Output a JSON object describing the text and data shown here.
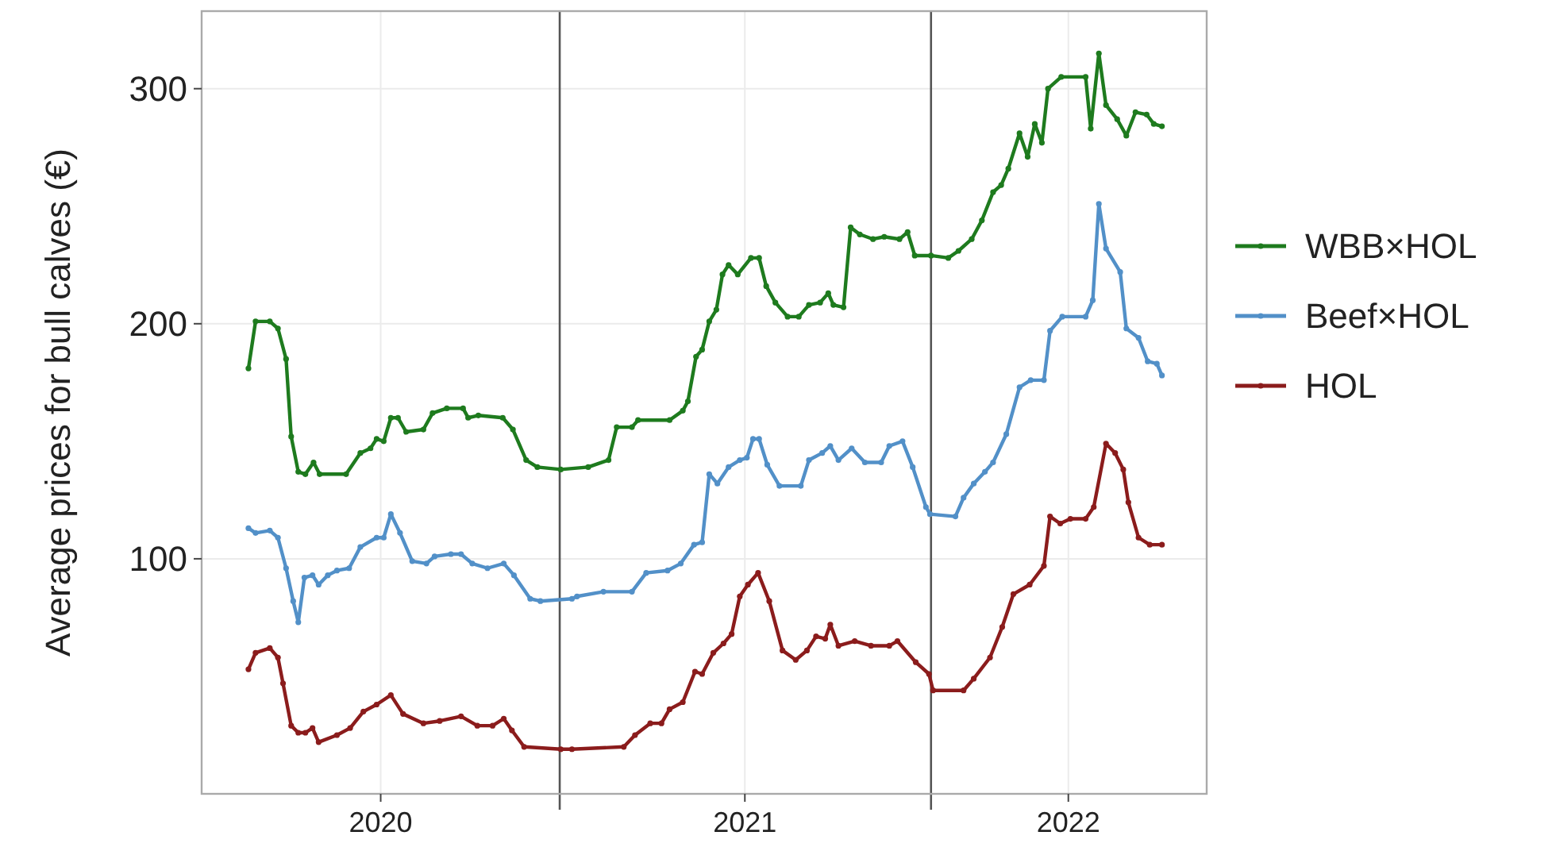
{
  "chart_data": {
    "type": "line",
    "ylabel": "Average prices for bull calves (€)",
    "xlim": [
      "2020-01-15",
      "2022-09-29"
    ],
    "xticks": [
      {
        "value": "2020-07-09",
        "label": "2020"
      },
      {
        "value": "2021-07-02",
        "label": "2021"
      },
      {
        "value": "2022-05-16",
        "label": "2022"
      }
    ],
    "ylim": [
      0,
      333
    ],
    "yticks": [
      100,
      200,
      300
    ],
    "grid": true,
    "legend": "right",
    "marker": "circle",
    "line_style": "solid",
    "ref_lines": [
      {
        "axis": "x",
        "value": "2021-01-01",
        "color": "#555555"
      },
      {
        "axis": "x",
        "value": "2022-01-01",
        "color": "#555555"
      }
    ],
    "series": [
      {
        "name": "WBB×HOL",
        "color": "#1e7b1e",
        "x": [
          "2020-03-01",
          "2020-03-08",
          "2020-03-22",
          "2020-03-30",
          "2020-04-07",
          "2020-04-12",
          "2020-04-19",
          "2020-04-26",
          "2020-05-04",
          "2020-05-10",
          "2020-06-05",
          "2020-06-19",
          "2020-06-29",
          "2020-07-05",
          "2020-07-12",
          "2020-07-19",
          "2020-07-26",
          "2020-08-03",
          "2020-08-20",
          "2020-08-29",
          "2020-09-12",
          "2020-09-28",
          "2020-10-03",
          "2020-10-13",
          "2020-11-06",
          "2020-11-16",
          "2020-11-29",
          "2020-12-10",
          "2021-01-02",
          "2021-01-29",
          "2021-02-18",
          "2021-02-26",
          "2021-03-13",
          "2021-03-19",
          "2021-04-19",
          "2021-05-02",
          "2021-05-07",
          "2021-05-15",
          "2021-05-21",
          "2021-05-28",
          "2021-06-04",
          "2021-06-10",
          "2021-06-16",
          "2021-06-25",
          "2021-07-08",
          "2021-07-16",
          "2021-07-23",
          "2021-08-01",
          "2021-08-13",
          "2021-08-24",
          "2021-09-03",
          "2021-09-14",
          "2021-09-22",
          "2021-09-27",
          "2021-10-07",
          "2021-10-14",
          "2021-10-23",
          "2021-11-05",
          "2021-11-16",
          "2021-12-01",
          "2021-12-09",
          "2021-12-16",
          "2022-01-01",
          "2022-01-18",
          "2022-01-28",
          "2022-02-10",
          "2022-02-20",
          "2022-03-03",
          "2022-03-11",
          "2022-03-18",
          "2022-03-29",
          "2022-04-06",
          "2022-04-13",
          "2022-04-20",
          "2022-04-26",
          "2022-05-09",
          "2022-06-02",
          "2022-06-07",
          "2022-06-15",
          "2022-06-22",
          "2022-07-03",
          "2022-07-12",
          "2022-07-21",
          "2022-08-01",
          "2022-08-08",
          "2022-08-16"
        ],
        "values": [
          181,
          201,
          201,
          198,
          185,
          152,
          137,
          136,
          141,
          136,
          136,
          145,
          147,
          151,
          150,
          160,
          160,
          154,
          155,
          162,
          164,
          164,
          160,
          161,
          160,
          155,
          142,
          139,
          138,
          139,
          142,
          156,
          156,
          159,
          159,
          163,
          167,
          186,
          189,
          201,
          206,
          221,
          225,
          221,
          228,
          228,
          216,
          209,
          203,
          203,
          208,
          209,
          213,
          208,
          207,
          241,
          238,
          236,
          237,
          236,
          239,
          229,
          229,
          228,
          231,
          236,
          244,
          256,
          259,
          266,
          281,
          271,
          285,
          277,
          300,
          305,
          305,
          283,
          315,
          293,
          287,
          280,
          290,
          289,
          285,
          284
        ]
      },
      {
        "name": "Beef×HOL",
        "color": "#5290c8",
        "x": [
          "2020-03-01",
          "2020-03-08",
          "2020-03-22",
          "2020-03-30",
          "2020-04-07",
          "2020-04-14",
          "2020-04-19",
          "2020-04-25",
          "2020-05-03",
          "2020-05-09",
          "2020-05-18",
          "2020-05-27",
          "2020-06-08",
          "2020-06-19",
          "2020-07-05",
          "2020-07-12",
          "2020-07-19",
          "2020-07-28",
          "2020-08-09",
          "2020-08-23",
          "2020-08-31",
          "2020-09-16",
          "2020-09-26",
          "2020-10-07",
          "2020-10-22",
          "2020-11-07",
          "2020-11-17",
          "2020-12-03",
          "2020-12-13",
          "2021-01-13",
          "2021-01-18",
          "2021-02-13",
          "2021-03-13",
          "2021-03-27",
          "2021-04-17",
          "2021-04-30",
          "2021-05-13",
          "2021-05-21",
          "2021-05-28",
          "2021-06-05",
          "2021-06-16",
          "2021-06-27",
          "2021-07-04",
          "2021-07-10",
          "2021-07-16",
          "2021-07-24",
          "2021-08-05",
          "2021-08-26",
          "2021-09-03",
          "2021-09-16",
          "2021-09-24",
          "2021-10-02",
          "2021-10-15",
          "2021-10-28",
          "2021-11-13",
          "2021-11-21",
          "2021-12-04",
          "2021-12-14",
          "2021-12-27",
          "2021-12-31",
          "2022-01-25",
          "2022-02-02",
          "2022-02-12",
          "2022-02-23",
          "2022-03-03",
          "2022-03-16",
          "2022-03-29",
          "2022-04-09",
          "2022-04-22",
          "2022-04-28",
          "2022-05-10",
          "2022-06-02",
          "2022-06-09",
          "2022-06-15",
          "2022-06-22",
          "2022-07-06",
          "2022-07-12",
          "2022-07-24",
          "2022-08-02",
          "2022-08-11",
          "2022-08-16"
        ],
        "values": [
          113,
          111,
          112,
          109,
          96,
          82,
          73,
          92,
          93,
          89,
          93,
          95,
          96,
          105,
          109,
          109,
          119,
          111,
          99,
          98,
          101,
          102,
          102,
          98,
          96,
          98,
          93,
          83,
          82,
          83,
          84,
          86,
          86,
          94,
          95,
          98,
          106,
          107,
          136,
          132,
          139,
          142,
          143,
          151,
          151,
          140,
          131,
          131,
          142,
          145,
          148,
          142,
          147,
          141,
          141,
          148,
          150,
          139,
          122,
          119,
          118,
          126,
          132,
          137,
          141,
          153,
          173,
          176,
          176,
          197,
          203,
          203,
          210,
          251,
          232,
          222,
          198,
          194,
          184,
          183,
          178
        ]
      },
      {
        "name": "HOL",
        "color": "#8b1c1c",
        "x": [
          "2020-03-01",
          "2020-03-08",
          "2020-03-22",
          "2020-03-30",
          "2020-04-04",
          "2020-04-12",
          "2020-04-19",
          "2020-04-26",
          "2020-05-03",
          "2020-05-09",
          "2020-05-27",
          "2020-06-09",
          "2020-06-22",
          "2020-07-05",
          "2020-07-19",
          "2020-07-31",
          "2020-08-20",
          "2020-09-05",
          "2020-09-26",
          "2020-10-12",
          "2020-10-27",
          "2020-11-07",
          "2020-11-15",
          "2020-11-27",
          "2021-01-02",
          "2021-01-13",
          "2021-03-05",
          "2021-03-16",
          "2021-03-31",
          "2021-04-11",
          "2021-04-19",
          "2021-05-02",
          "2021-05-14",
          "2021-05-21",
          "2021-06-01",
          "2021-06-11",
          "2021-06-19",
          "2021-06-27",
          "2021-07-05",
          "2021-07-15",
          "2021-07-26",
          "2021-08-08",
          "2021-08-21",
          "2021-09-01",
          "2021-09-10",
          "2021-09-19",
          "2021-09-24",
          "2021-10-02",
          "2021-10-18",
          "2021-11-03",
          "2021-11-21",
          "2021-11-29",
          "2021-12-17",
          "2021-12-30",
          "2022-01-03",
          "2022-02-02",
          "2022-02-12",
          "2022-02-28",
          "2022-03-12",
          "2022-03-23",
          "2022-04-08",
          "2022-04-22",
          "2022-04-28",
          "2022-05-08",
          "2022-05-18",
          "2022-06-02",
          "2022-06-10",
          "2022-06-22",
          "2022-07-01",
          "2022-07-09",
          "2022-07-14",
          "2022-07-24",
          "2022-08-04",
          "2022-08-16"
        ],
        "values": [
          53,
          60,
          62,
          58,
          47,
          29,
          26,
          26,
          28,
          22,
          25,
          28,
          35,
          38,
          42,
          34,
          30,
          31,
          33,
          29,
          29,
          32,
          27,
          20,
          19,
          19,
          20,
          25,
          30,
          30,
          36,
          39,
          52,
          51,
          60,
          64,
          68,
          84,
          89,
          94,
          82,
          61,
          57,
          61,
          67,
          66,
          72,
          63,
          65,
          63,
          63,
          65,
          56,
          51,
          44,
          44,
          49,
          58,
          71,
          85,
          89,
          97,
          118,
          115,
          117,
          117,
          122,
          149,
          145,
          138,
          124,
          109,
          106,
          106
        ]
      }
    ]
  }
}
